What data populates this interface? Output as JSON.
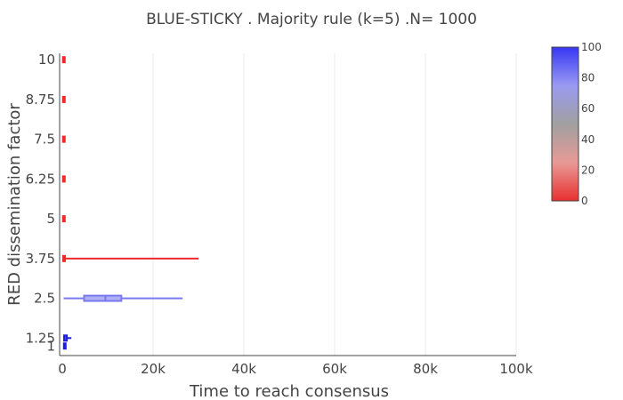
{
  "chart_data": {
    "type": "box",
    "orientation": "horizontal",
    "title": "BLUE-STICKY . Majority rule (k=5) .N= 1000",
    "xlabel": "Time to reach consensus",
    "ylabel": "RED dissemination factor",
    "xlim": [
      0,
      100000
    ],
    "ylim": [
      0.7,
      10.2
    ],
    "x_tick_values": [
      0,
      20000,
      40000,
      60000,
      80000,
      100000
    ],
    "x_tick_labels": [
      "0",
      "20k",
      "40k",
      "60k",
      "80k",
      "100k"
    ],
    "y_tick_values": [
      1,
      1.25,
      2.5,
      3.75,
      5,
      6.25,
      7.5,
      8.75,
      10
    ],
    "y_tick_labels": [
      "1",
      "1.25",
      "2.5",
      "3.75",
      "5",
      "6.25",
      "7.5",
      "8.75",
      "10"
    ],
    "vertical_grid": true,
    "colorbar": {
      "min": 0,
      "max": 100,
      "tick_values": [
        0,
        20,
        40,
        60,
        80,
        100
      ],
      "tick_labels": [
        "0",
        "20",
        "40",
        "60",
        "80",
        "100"
      ],
      "colors": [
        "#e8302f",
        "#e89a96",
        "#a0a0a0",
        "#9a9af2",
        "#3636f5"
      ]
    },
    "series": [
      {
        "y": 1,
        "min": 300,
        "q1": 350,
        "median": 400,
        "q3": 450,
        "max": 500,
        "color": "#1d1de0"
      },
      {
        "y": 1.25,
        "min": 300,
        "q1": 400,
        "median": 500,
        "q3": 1000,
        "max": 2000,
        "color": "#1d1de0"
      },
      {
        "y": 2.5,
        "min": 300,
        "q1": 4800,
        "median": 9500,
        "q3": 13000,
        "max": 26500,
        "color": "#7a7af0"
      },
      {
        "y": 3.75,
        "min": 100,
        "q1": 200,
        "median": 300,
        "q3": 500,
        "max": 30000,
        "color": "#f02a2a"
      },
      {
        "y": 5,
        "min": 100,
        "q1": 150,
        "median": 250,
        "q3": 400,
        "max": 600,
        "color": "#f02a2a"
      },
      {
        "y": 6.25,
        "min": 100,
        "q1": 150,
        "median": 250,
        "q3": 400,
        "max": 600,
        "color": "#f02a2a"
      },
      {
        "y": 7.5,
        "min": 100,
        "q1": 150,
        "median": 250,
        "q3": 400,
        "max": 600,
        "color": "#f02a2a"
      },
      {
        "y": 8.75,
        "min": 100,
        "q1": 150,
        "median": 250,
        "q3": 400,
        "max": 600,
        "color": "#f02a2a"
      },
      {
        "y": 10,
        "min": 100,
        "q1": 150,
        "median": 250,
        "q3": 400,
        "max": 600,
        "color": "#f02a2a"
      }
    ]
  }
}
